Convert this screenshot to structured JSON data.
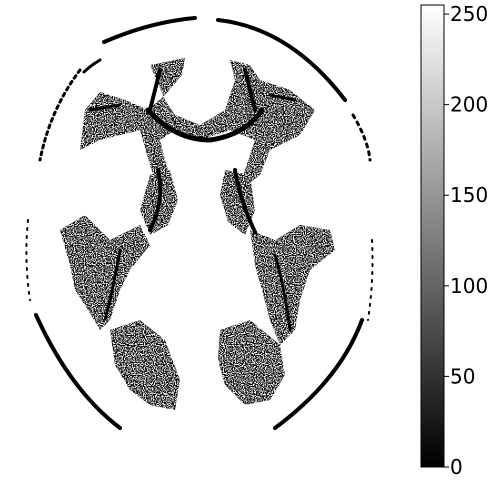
{
  "colorbar": {
    "ticks": [
      {
        "value": 0,
        "label": "0"
      },
      {
        "value": 50,
        "label": "50"
      },
      {
        "value": 100,
        "label": "100"
      },
      {
        "value": 150,
        "label": "150"
      },
      {
        "value": 200,
        "label": "200"
      },
      {
        "value": 250,
        "label": "250"
      }
    ],
    "range": [
      0,
      255
    ],
    "colormap": "gray",
    "low_color": "#000000",
    "high_color": "#ffffff"
  },
  "image": {
    "type": "binary brain segmentation mask",
    "colors": {
      "foreground": "#000000",
      "background": "#ffffff"
    }
  }
}
